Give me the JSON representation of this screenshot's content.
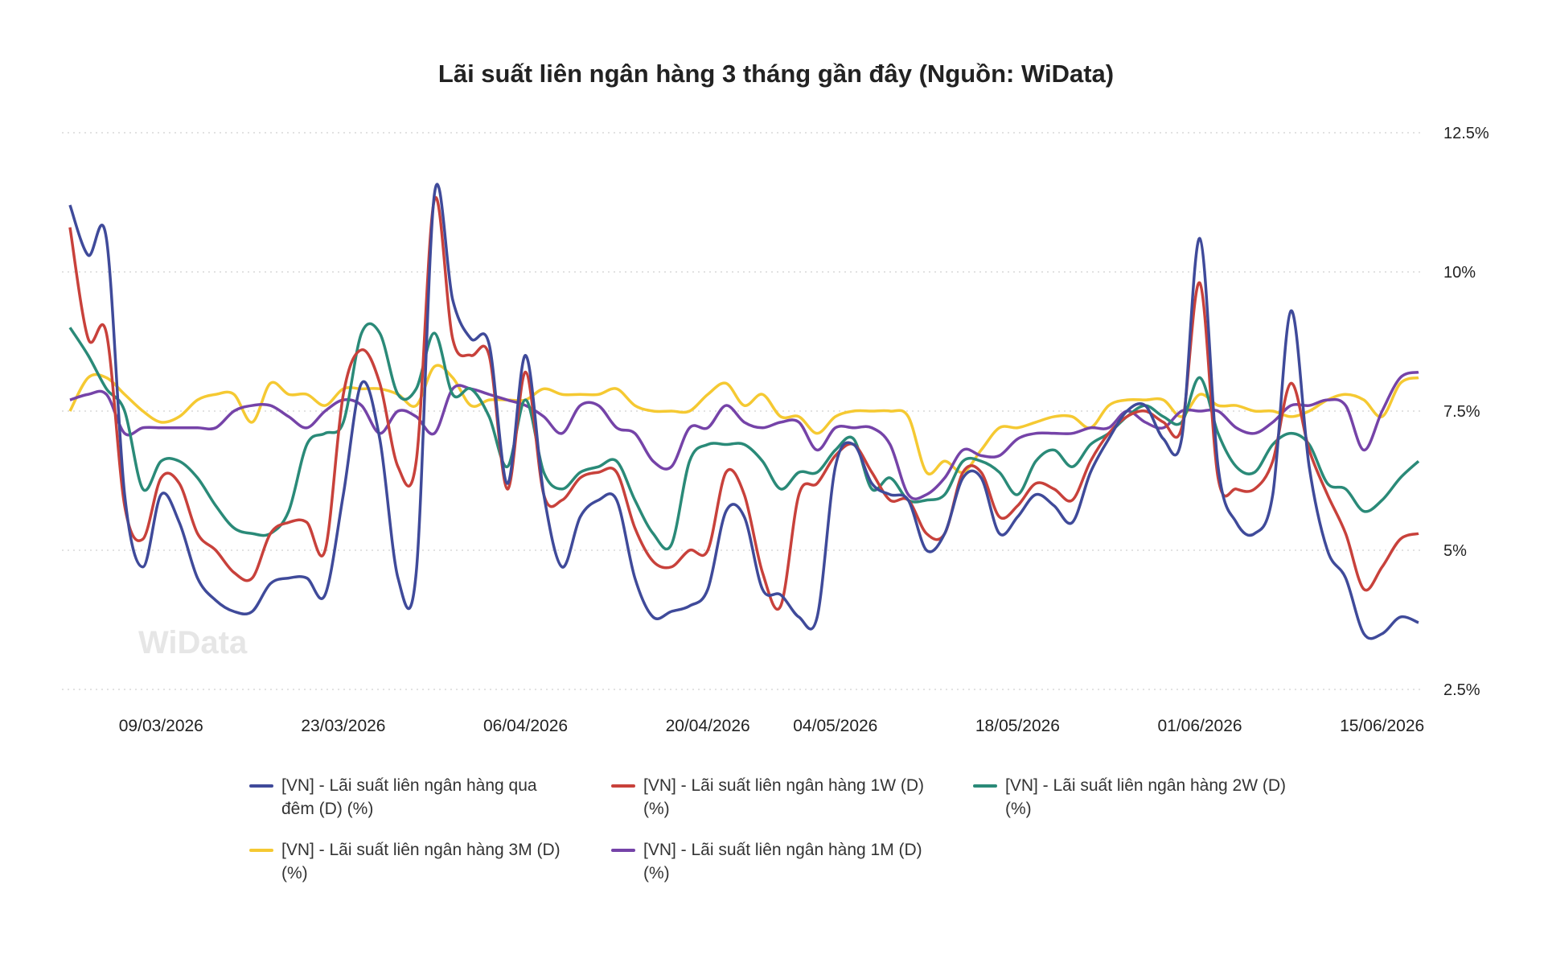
{
  "chart_data": {
    "type": "line",
    "title": "Lãi suất liên ngân hàng 3 tháng gần đây (Nguồn: WiData)",
    "watermark": "WiData",
    "categories": [
      null,
      null,
      null,
      null,
      null,
      "09/03/2026",
      null,
      null,
      null,
      null,
      null,
      null,
      null,
      null,
      null,
      "23/03/2026",
      null,
      null,
      null,
      null,
      null,
      null,
      null,
      null,
      null,
      "06/04/2026",
      null,
      null,
      null,
      null,
      null,
      null,
      null,
      null,
      null,
      "20/04/2026",
      null,
      null,
      null,
      null,
      null,
      null,
      "04/05/2026",
      null,
      null,
      null,
      null,
      null,
      null,
      null,
      null,
      null,
      "18/05/2026",
      null,
      null,
      null,
      null,
      null,
      null,
      null,
      null,
      null,
      "01/06/2026",
      null,
      null,
      null,
      null,
      null,
      null,
      null,
      null,
      null,
      "15/06/2026",
      null,
      null
    ],
    "ylim": [
      2.5,
      12.5
    ],
    "yticks": [
      {
        "value": 2.5,
        "label": "2.5%"
      },
      {
        "value": 5,
        "label": "5%"
      },
      {
        "value": 7.5,
        "label": "7.5%"
      },
      {
        "value": 10,
        "label": "10%"
      },
      {
        "value": 12.5,
        "label": "12.5%"
      }
    ],
    "grid": true,
    "legend": "bottom",
    "series": [
      {
        "name": "[VN] - Lãi suất liên ngân hàng qua đêm (D) (%)",
        "color": "#3f4a9a",
        "values": [
          11.2,
          10.3,
          10.6,
          6.0,
          4.7,
          6.0,
          5.5,
          4.5,
          4.1,
          3.9,
          3.9,
          4.4,
          4.5,
          4.5,
          4.2,
          6.0,
          8.0,
          7.0,
          4.5,
          4.6,
          11.4,
          9.5,
          8.8,
          8.7,
          6.2,
          8.5,
          6.0,
          4.7,
          5.6,
          5.9,
          5.9,
          4.5,
          3.8,
          3.9,
          4.0,
          4.3,
          5.7,
          5.6,
          4.3,
          4.2,
          3.8,
          3.8,
          6.5,
          6.9,
          6.2,
          6.0,
          5.9,
          5.0,
          5.3,
          6.3,
          6.3,
          5.3,
          5.6,
          6.0,
          5.8,
          5.5,
          6.4,
          7.0,
          7.5,
          7.6,
          7.0,
          7.0,
          10.6,
          6.5,
          5.5,
          5.3,
          6.0,
          9.3,
          6.5,
          5.0,
          4.5,
          3.5,
          3.5,
          3.8,
          3.7
        ]
      },
      {
        "name": "[VN] - Lãi suất liên ngân hàng 1W (D) (%)",
        "color": "#c8413b",
        "values": [
          10.8,
          8.8,
          8.9,
          5.8,
          5.2,
          6.3,
          6.2,
          5.3,
          5.0,
          4.6,
          4.5,
          5.3,
          5.5,
          5.5,
          5.0,
          7.8,
          8.6,
          8.0,
          6.5,
          6.6,
          11.3,
          8.8,
          8.5,
          8.5,
          6.1,
          8.2,
          6.0,
          5.9,
          6.3,
          6.4,
          6.4,
          5.4,
          4.8,
          4.7,
          5.0,
          5.0,
          6.4,
          6.0,
          4.6,
          4.0,
          6.0,
          6.2,
          6.7,
          6.9,
          6.4,
          5.9,
          5.9,
          5.3,
          5.3,
          6.4,
          6.4,
          5.6,
          5.8,
          6.2,
          6.1,
          5.9,
          6.6,
          7.1,
          7.4,
          7.5,
          7.3,
          7.2,
          9.8,
          6.3,
          6.1,
          6.1,
          6.6,
          8.0,
          6.8,
          6.0,
          5.3,
          4.3,
          4.7,
          5.2,
          5.3
        ]
      },
      {
        "name": "[VN] - Lãi suất liên ngân hàng 2W (D) (%)",
        "color": "#2a8a78",
        "values": [
          9.0,
          8.5,
          7.9,
          7.5,
          6.1,
          6.6,
          6.6,
          6.3,
          5.8,
          5.4,
          5.3,
          5.3,
          5.7,
          6.9,
          7.1,
          7.3,
          8.9,
          8.9,
          7.8,
          7.9,
          8.9,
          7.8,
          7.9,
          7.4,
          6.5,
          7.7,
          6.4,
          6.1,
          6.4,
          6.5,
          6.6,
          5.9,
          5.3,
          5.1,
          6.6,
          6.9,
          6.9,
          6.9,
          6.6,
          6.1,
          6.4,
          6.4,
          6.8,
          7.0,
          6.1,
          6.3,
          5.9,
          5.9,
          6.0,
          6.6,
          6.6,
          6.4,
          6.0,
          6.6,
          6.8,
          6.5,
          6.9,
          7.1,
          7.4,
          7.6,
          7.4,
          7.3,
          8.1,
          7.1,
          6.5,
          6.4,
          6.9,
          7.1,
          6.9,
          6.2,
          6.1,
          5.7,
          5.9,
          6.3,
          6.6
        ]
      },
      {
        "name": "[VN] - Lãi suất liên ngân hàng 3M (D) (%)",
        "color": "#f5c932",
        "values": [
          7.5,
          8.1,
          8.1,
          7.8,
          7.5,
          7.3,
          7.4,
          7.7,
          7.8,
          7.8,
          7.3,
          8.0,
          7.8,
          7.8,
          7.6,
          7.9,
          7.9,
          7.9,
          7.8,
          7.6,
          8.3,
          8.1,
          7.6,
          7.7,
          7.7,
          7.7,
          7.9,
          7.8,
          7.8,
          7.8,
          7.9,
          7.6,
          7.5,
          7.5,
          7.5,
          7.8,
          8.0,
          7.6,
          7.8,
          7.4,
          7.4,
          7.1,
          7.4,
          7.5,
          7.5,
          7.5,
          7.4,
          6.4,
          6.6,
          6.4,
          6.8,
          7.2,
          7.2,
          7.3,
          7.4,
          7.4,
          7.2,
          7.6,
          7.7,
          7.7,
          7.7,
          7.4,
          7.8,
          7.6,
          7.6,
          7.5,
          7.5,
          7.4,
          7.5,
          7.7,
          7.8,
          7.7,
          7.4,
          8.0,
          8.1
        ]
      },
      {
        "name": "[VN] - Lãi suất liên ngân hàng 1M (D) (%)",
        "color": "#7543a8",
        "values": [
          7.7,
          7.8,
          7.8,
          7.1,
          7.2,
          7.2,
          7.2,
          7.2,
          7.2,
          7.5,
          7.6,
          7.6,
          7.4,
          7.2,
          7.5,
          7.7,
          7.6,
          7.1,
          7.5,
          7.4,
          7.1,
          7.9,
          7.9,
          7.8,
          7.7,
          7.6,
          7.4,
          7.1,
          7.6,
          7.6,
          7.2,
          7.1,
          6.6,
          6.5,
          7.2,
          7.2,
          7.6,
          7.3,
          7.2,
          7.3,
          7.3,
          6.8,
          7.2,
          7.2,
          7.2,
          6.9,
          6.0,
          6.0,
          6.3,
          6.8,
          6.7,
          6.7,
          7.0,
          7.1,
          7.1,
          7.1,
          7.2,
          7.2,
          7.5,
          7.3,
          7.2,
          7.5,
          7.5,
          7.5,
          7.2,
          7.1,
          7.3,
          7.6,
          7.6,
          7.7,
          7.6,
          6.8,
          7.5,
          8.1,
          8.2
        ]
      }
    ]
  }
}
